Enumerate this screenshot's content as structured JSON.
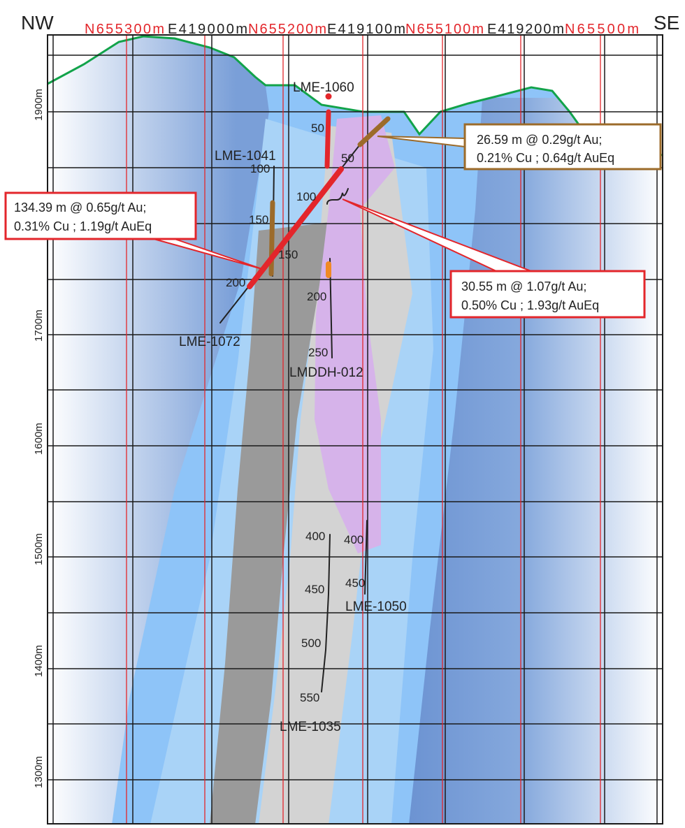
{
  "orientation": {
    "left": "NW",
    "right": "SE"
  },
  "grid_labels": [
    "N655300m",
    "E419000m",
    "N655200m",
    "E419100m",
    "N655100m",
    "E419200m",
    "N65500m"
  ],
  "elevation_labels": [
    "1900m",
    "1700m",
    "1600m",
    "1500m",
    "1400m",
    "1300m"
  ],
  "drill_holes": [
    {
      "name": "LME-1060",
      "depth_labels": [
        "50"
      ]
    },
    {
      "name": "LME-1041",
      "depth_labels": [
        "100",
        "150"
      ]
    },
    {
      "name": "LME-1072",
      "depth_labels": [
        "50",
        "100",
        "150",
        "200"
      ]
    },
    {
      "name": "LMDDH-012",
      "depth_labels": [
        "200",
        "250"
      ]
    },
    {
      "name": "LME-1050",
      "depth_labels": [
        "400",
        "450"
      ]
    },
    {
      "name": "LME-1035",
      "depth_labels": [
        "400",
        "450",
        "500",
        "550"
      ]
    }
  ],
  "callouts": [
    {
      "lines": [
        "26.59 m @ 0.29g/t Au;",
        "0.21% Cu ; 0.64g/t AuEq"
      ]
    },
    {
      "lines": [
        "134.39 m @ 0.65g/t Au;",
        "0.31% Cu ; 1.19g/t AuEq"
      ]
    },
    {
      "lines": [
        "30.55 m @ 1.07g/t Au;",
        "0.50% Cu ; 1.93g/t AuEq"
      ]
    }
  ]
}
